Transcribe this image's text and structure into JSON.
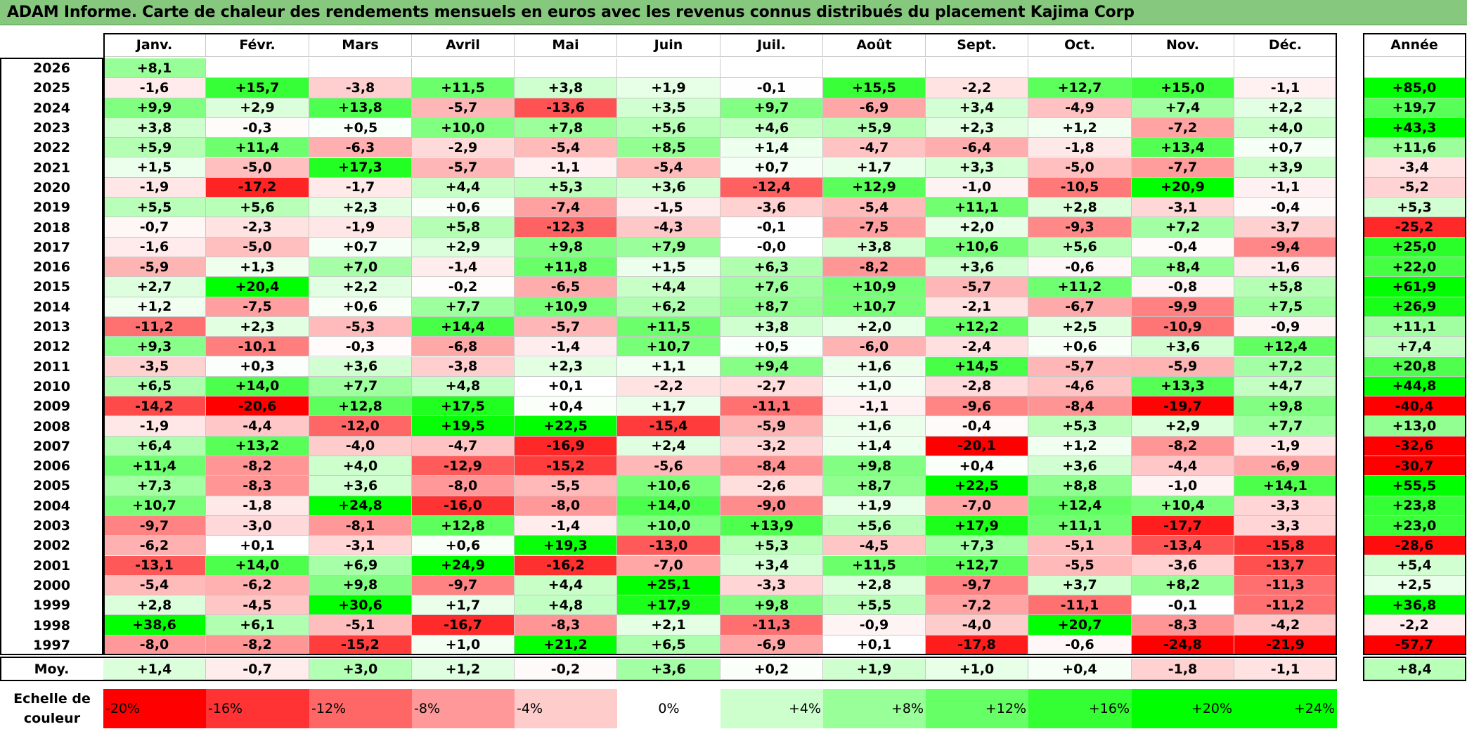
{
  "title": "ADAM Informe. Carte de chaleur des rendements mensuels en euros avec les revenus connus distribués du placement Kajima Corp",
  "chart_data": {
    "type": "heatmap",
    "title": "ADAM Informe. Carte de chaleur des rendements mensuels en euros avec les revenus connus distribués du placement Kajima Corp",
    "columns": [
      "Janv.",
      "Févr.",
      "Mars",
      "Avril",
      "Mai",
      "Juin",
      "Juil.",
      "Août",
      "Sept.",
      "Oct.",
      "Nov.",
      "Déc."
    ],
    "year_header": "Année",
    "rows": [
      {
        "year": "2026",
        "values": [
          "+8,1",
          "",
          "",
          "",
          "",
          "",
          "",
          "",
          "",
          "",
          "",
          ""
        ],
        "annual": ""
      },
      {
        "year": "2025",
        "values": [
          "-1,6",
          "+15,7",
          "-3,8",
          "+11,5",
          "+3,8",
          "+1,9",
          "-0,1",
          "+15,5",
          "-2,2",
          "+12,7",
          "+15,0",
          "-1,1"
        ],
        "annual": "+85,0"
      },
      {
        "year": "2024",
        "values": [
          "+9,9",
          "+2,9",
          "+13,8",
          "-5,7",
          "-13,6",
          "+3,5",
          "+9,7",
          "-6,9",
          "+3,4",
          "-4,9",
          "+7,4",
          "+2,2"
        ],
        "annual": "+19,7"
      },
      {
        "year": "2023",
        "values": [
          "+3,8",
          "-0,3",
          "+0,5",
          "+10,0",
          "+7,8",
          "+5,6",
          "+4,6",
          "+5,9",
          "+2,3",
          "+1,2",
          "-7,2",
          "+4,0"
        ],
        "annual": "+43,3"
      },
      {
        "year": "2022",
        "values": [
          "+5,9",
          "+11,4",
          "-6,3",
          "-2,9",
          "-5,4",
          "+8,5",
          "+1,4",
          "-4,7",
          "-6,4",
          "-1,8",
          "+13,4",
          "+0,7"
        ],
        "annual": "+11,6"
      },
      {
        "year": "2021",
        "values": [
          "+1,5",
          "-5,0",
          "+17,3",
          "-5,7",
          "-1,1",
          "-5,4",
          "+0,7",
          "+1,7",
          "+3,3",
          "-5,0",
          "-7,7",
          "+3,9"
        ],
        "annual": "-3,4"
      },
      {
        "year": "2020",
        "values": [
          "-1,9",
          "-17,2",
          "-1,7",
          "+4,4",
          "+5,3",
          "+3,6",
          "-12,4",
          "+12,9",
          "-1,0",
          "-10,5",
          "+20,9",
          "-1,1"
        ],
        "annual": "-5,2"
      },
      {
        "year": "2019",
        "values": [
          "+5,5",
          "+5,6",
          "+2,3",
          "+0,6",
          "-7,4",
          "-1,5",
          "-3,6",
          "-5,4",
          "+11,1",
          "+2,8",
          "-3,1",
          "-0,4"
        ],
        "annual": "+5,3"
      },
      {
        "year": "2018",
        "values": [
          "-0,7",
          "-2,3",
          "-1,9",
          "+5,8",
          "-12,3",
          "-4,3",
          "-0,1",
          "-7,5",
          "+2,0",
          "-9,3",
          "+7,2",
          "-3,7"
        ],
        "annual": "-25,2"
      },
      {
        "year": "2017",
        "values": [
          "-1,6",
          "-5,0",
          "+0,7",
          "+2,9",
          "+9,8",
          "+7,9",
          "-0,0",
          "+3,8",
          "+10,6",
          "+5,6",
          "-0,4",
          "-9,4"
        ],
        "annual": "+25,0"
      },
      {
        "year": "2016",
        "values": [
          "-5,9",
          "+1,3",
          "+7,0",
          "-1,4",
          "+11,8",
          "+1,5",
          "+6,3",
          "-8,2",
          "+3,6",
          "-0,6",
          "+8,4",
          "-1,6"
        ],
        "annual": "+22,0"
      },
      {
        "year": "2015",
        "values": [
          "+2,7",
          "+20,4",
          "+2,2",
          "-0,2",
          "-6,5",
          "+4,4",
          "+7,6",
          "+10,9",
          "-5,7",
          "+11,2",
          "-0,8",
          "+5,8"
        ],
        "annual": "+61,9"
      },
      {
        "year": "2014",
        "values": [
          "+1,2",
          "-7,5",
          "+0,6",
          "+7,7",
          "+10,9",
          "+6,2",
          "+8,7",
          "+10,7",
          "-2,1",
          "-6,7",
          "-9,9",
          "+7,5"
        ],
        "annual": "+26,9"
      },
      {
        "year": "2013",
        "values": [
          "-11,2",
          "+2,3",
          "-5,3",
          "+14,4",
          "-5,7",
          "+11,5",
          "+3,8",
          "+2,0",
          "+12,2",
          "+2,5",
          "-10,9",
          "-0,9"
        ],
        "annual": "+11,1"
      },
      {
        "year": "2012",
        "values": [
          "+9,3",
          "-10,1",
          "-0,3",
          "-6,8",
          "-1,4",
          "+10,7",
          "+0,5",
          "-6,0",
          "-2,4",
          "+0,6",
          "+3,6",
          "+12,4"
        ],
        "annual": "+7,4"
      },
      {
        "year": "2011",
        "values": [
          "-3,5",
          "+0,3",
          "+3,6",
          "-3,8",
          "+2,3",
          "+1,1",
          "+9,4",
          "+1,6",
          "+14,5",
          "-5,7",
          "-5,9",
          "+7,2"
        ],
        "annual": "+20,8"
      },
      {
        "year": "2010",
        "values": [
          "+6,5",
          "+14,0",
          "+7,7",
          "+4,8",
          "+0,1",
          "-2,2",
          "-2,7",
          "+1,0",
          "-2,8",
          "-4,6",
          "+13,3",
          "+4,7"
        ],
        "annual": "+44,8"
      },
      {
        "year": "2009",
        "values": [
          "-14,2",
          "-20,6",
          "+12,8",
          "+17,5",
          "+0,4",
          "+1,7",
          "-11,1",
          "-1,1",
          "-9,6",
          "-8,4",
          "-19,7",
          "+9,8"
        ],
        "annual": "-40,4"
      },
      {
        "year": "2008",
        "values": [
          "-1,9",
          "-4,4",
          "-12,0",
          "+19,5",
          "+22,5",
          "-15,4",
          "-5,9",
          "+1,6",
          "-0,4",
          "+5,3",
          "+2,9",
          "+7,7"
        ],
        "annual": "+13,0"
      },
      {
        "year": "2007",
        "values": [
          "+6,4",
          "+13,2",
          "-4,0",
          "-4,7",
          "-16,9",
          "+2,4",
          "-3,2",
          "+1,4",
          "-20,1",
          "+1,2",
          "-8,2",
          "-1,9"
        ],
        "annual": "-32,6"
      },
      {
        "year": "2006",
        "values": [
          "+11,4",
          "-8,2",
          "+4,0",
          "-12,9",
          "-15,2",
          "-5,6",
          "-8,4",
          "+9,8",
          "+0,4",
          "+3,6",
          "-4,4",
          "-6,9"
        ],
        "annual": "-30,7"
      },
      {
        "year": "2005",
        "values": [
          "+7,3",
          "-8,3",
          "+3,6",
          "-8,0",
          "-5,5",
          "+10,6",
          "-2,6",
          "+8,7",
          "+22,5",
          "+8,8",
          "-1,0",
          "+14,1"
        ],
        "annual": "+55,5"
      },
      {
        "year": "2004",
        "values": [
          "+10,7",
          "-1,8",
          "+24,8",
          "-16,0",
          "-8,0",
          "+14,0",
          "-9,0",
          "+1,9",
          "-7,0",
          "+12,4",
          "+10,4",
          "-3,3"
        ],
        "annual": "+23,8"
      },
      {
        "year": "2003",
        "values": [
          "-9,7",
          "-3,0",
          "-8,1",
          "+12,8",
          "-1,4",
          "+10,0",
          "+13,9",
          "+5,6",
          "+17,9",
          "+11,1",
          "-17,7",
          "-3,3"
        ],
        "annual": "+23,0"
      },
      {
        "year": "2002",
        "values": [
          "-6,2",
          "+0,1",
          "-3,1",
          "+0,6",
          "+19,3",
          "-13,0",
          "+5,3",
          "-4,5",
          "+7,3",
          "-5,1",
          "-13,4",
          "-15,8"
        ],
        "annual": "-28,6"
      },
      {
        "year": "2001",
        "values": [
          "-13,1",
          "+14,0",
          "+6,9",
          "+24,9",
          "-16,2",
          "-7,0",
          "+3,4",
          "+11,5",
          "+12,7",
          "-5,5",
          "-3,6",
          "-13,7"
        ],
        "annual": "+5,4"
      },
      {
        "year": "2000",
        "values": [
          "-5,4",
          "-6,2",
          "+9,8",
          "-9,7",
          "+4,4",
          "+25,1",
          "-3,3",
          "+2,8",
          "-9,7",
          "+3,7",
          "+8,2",
          "-11,3"
        ],
        "annual": "+2,5"
      },
      {
        "year": "1999",
        "values": [
          "+2,8",
          "-4,5",
          "+30,6",
          "+1,7",
          "+4,8",
          "+17,9",
          "+9,8",
          "+5,5",
          "-7,2",
          "-11,1",
          "-0,1",
          "-11,2"
        ],
        "annual": "+36,8"
      },
      {
        "year": "1998",
        "values": [
          "+38,6",
          "+6,1",
          "-5,1",
          "-16,7",
          "-8,3",
          "+2,1",
          "-11,3",
          "-0,9",
          "-4,0",
          "+20,7",
          "-8,3",
          "-4,2"
        ],
        "annual": "-2,2"
      },
      {
        "year": "1997",
        "values": [
          "-8,0",
          "-8,2",
          "-15,2",
          "+1,0",
          "+21,2",
          "+6,5",
          "-6,9",
          "+0,1",
          "-17,8",
          "-0,6",
          "-24,8",
          "-21,9"
        ],
        "annual": "-57,7"
      }
    ],
    "average": {
      "label": "Moy.",
      "values": [
        "+1,4",
        "-0,7",
        "+3,0",
        "+1,2",
        "-0,2",
        "+3,6",
        "+0,2",
        "+1,9",
        "+1,0",
        "+0,4",
        "-1,8",
        "-1,1"
      ],
      "annual": "+8,4"
    },
    "scale": {
      "label_line1": "Echelle de",
      "label_line2": "couleur",
      "stops": [
        "-20%",
        "-16%",
        "-12%",
        "-8%",
        "-4%",
        "0%",
        "+4%",
        "+8%",
        "+12%",
        "+16%",
        "+20%",
        "+24%"
      ]
    },
    "colors": {
      "red_max": "#ff0000",
      "neutral": "#ffffff",
      "green_max": "#00ff00",
      "title_bg": "#86c97e"
    }
  }
}
